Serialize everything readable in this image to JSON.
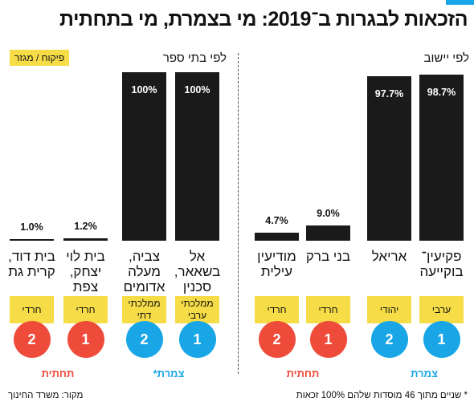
{
  "title": "הזכאות לבגרות ב־2019: מי בצמרת, מי בתחתית",
  "colors": {
    "blue": "#19a6e6",
    "red": "#ef4b3a",
    "yellow": "#f6dc47",
    "bar": "#1a1a1a"
  },
  "sections": {
    "by_locality": "לפי יישוב",
    "by_school": "לפי בתי ספר"
  },
  "legend_tag": "פיקוח / מגזר",
  "groups": {
    "top": "צמרת",
    "bottom": "תחתית",
    "top_star": "צמרת*"
  },
  "chart_data": [
    {
      "type": "bar",
      "subtitle": "לפי יישוב",
      "categories": [
        "פקיעין־ בוקייעה",
        "אריאל",
        "בני ברק",
        "מודיעין עילית"
      ],
      "values": [
        98.7,
        97.7,
        9.0,
        4.7
      ],
      "value_labels": [
        "98.7%",
        "97.7%",
        "9.0%",
        "4.7%"
      ],
      "sectors": [
        "ערבי",
        "יהודי",
        "חרדי",
        "חרדי"
      ],
      "ranks": [
        "1",
        "2",
        "1",
        "2"
      ],
      "rank_groups": [
        "top",
        "top",
        "bottom",
        "bottom"
      ],
      "ylim": [
        0,
        100
      ]
    },
    {
      "type": "bar",
      "subtitle": "לפי בתי ספר",
      "categories": [
        "אל בשאאר, סכנין",
        "צביה, מעלה אדומים",
        "בית לוי יצחק, צפת",
        "בית דוד, קרית גת"
      ],
      "values": [
        100,
        100,
        1.2,
        1.0
      ],
      "value_labels": [
        "100%",
        "100%",
        "1.2%",
        "1.0%"
      ],
      "sectors": [
        "ממלכתי ערבי",
        "ממלכתי דתי",
        "חרדי",
        "חרדי"
      ],
      "ranks": [
        "1",
        "2",
        "1",
        "2"
      ],
      "rank_groups": [
        "top",
        "top",
        "bottom",
        "bottom"
      ],
      "ylim": [
        0,
        100
      ]
    }
  ],
  "footnote": "* שניים מתוך 46 מוסדות שלהם 100% זכאות",
  "source": "מקור: משרד החינוך"
}
